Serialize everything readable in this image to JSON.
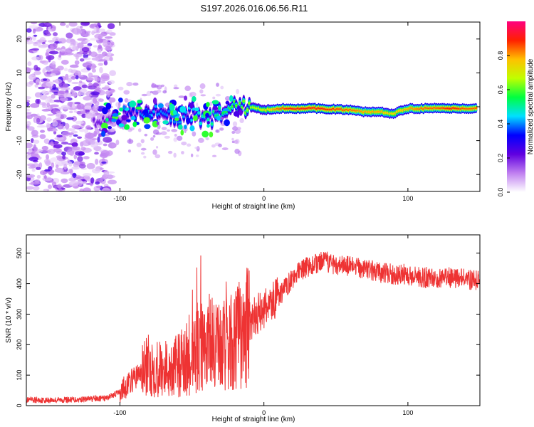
{
  "title": "S197.2026.016.06.56.R11",
  "chart_data": [
    {
      "type": "heatmap",
      "xlabel": "Height of straight line (km)",
      "ylabel": "Frequency (Hz)",
      "xlim": [
        -165,
        150
      ],
      "ylim": [
        -25,
        25
      ],
      "xticks": [
        -100,
        0,
        100
      ],
      "yticks": [
        -20,
        -10,
        0,
        10,
        20
      ],
      "colorbar": {
        "label": "Normalized spectral amplitude",
        "range": [
          0,
          1
        ],
        "ticks": [
          "0.0",
          "0.2",
          "0.4",
          "0.6",
          "0.8"
        ],
        "colors": [
          "#ffffff",
          "#c080f0",
          "#6000e0",
          "#0000ff",
          "#00e0ff",
          "#00ff40",
          "#c0ff00",
          "#ffc000",
          "#ff2000",
          "#ff0080"
        ]
      },
      "ridge": {
        "x": [
          -115,
          -100,
          -90,
          -80,
          -70,
          -60,
          -50,
          -40,
          -30,
          -20,
          -10,
          0,
          10,
          20,
          40,
          60,
          70,
          80,
          90,
          100,
          110,
          120,
          130,
          140,
          150
        ],
        "freq": [
          -4,
          -3,
          -2,
          -1.5,
          -2,
          -3,
          -2,
          -4,
          -2,
          0,
          0,
          -1,
          -0.5,
          -0.5,
          -0.5,
          -1,
          -1.5,
          -1.5,
          -2,
          -0.5,
          -0.5,
          -0.5,
          -0.5,
          -0.5,
          -0.5
        ],
        "amplitude": [
          0.2,
          0.25,
          0.35,
          0.45,
          0.4,
          0.4,
          0.45,
          0.5,
          0.55,
          0.6,
          0.65,
          0.7,
          0.85,
          0.9,
          0.9,
          0.85,
          0.8,
          0.8,
          0.75,
          0.8,
          0.85,
          0.85,
          0.9,
          0.85,
          0.85
        ]
      }
    },
    {
      "type": "line",
      "xlabel": "Height of straight line (km)",
      "ylabel": "SNR (10 * v/v)",
      "xlim": [
        -165,
        150
      ],
      "ylim": [
        0,
        560
      ],
      "xticks": [
        -100,
        0,
        100
      ],
      "yticks": [
        0,
        100,
        200,
        300,
        400,
        500
      ],
      "series": [
        {
          "name": "SNR",
          "color": "#ee3333",
          "x": [
            -165,
            -150,
            -130,
            -110,
            -100,
            -90,
            -80,
            -70,
            -60,
            -50,
            -40,
            -30,
            -20,
            -10,
            0,
            10,
            20,
            30,
            40,
            50,
            60,
            70,
            80,
            90,
            100,
            110,
            120,
            130,
            140,
            150
          ],
          "y": [
            18,
            18,
            20,
            24,
            45,
            90,
            130,
            120,
            130,
            165,
            210,
            190,
            210,
            270,
            320,
            355,
            420,
            455,
            470,
            465,
            455,
            450,
            435,
            430,
            430,
            420,
            420,
            420,
            415,
            410
          ]
        }
      ]
    }
  ]
}
